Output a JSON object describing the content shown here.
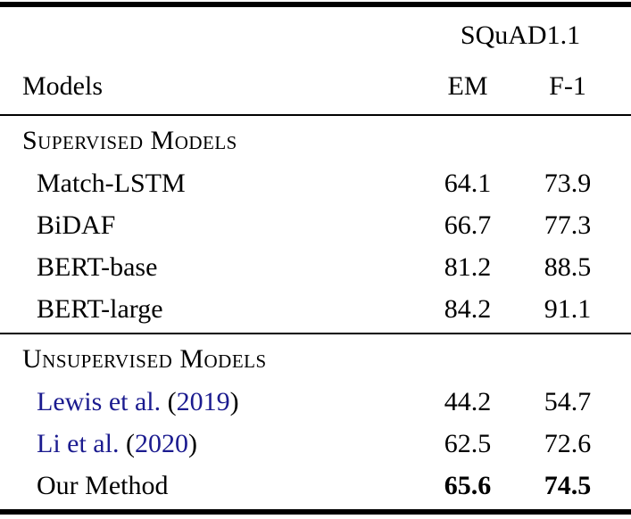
{
  "table": {
    "group_header": "SQuAD1.1",
    "columns": {
      "model": "Models",
      "em": "EM",
      "f1": "F-1"
    },
    "sections": [
      {
        "title": "Supervised Models",
        "rows": [
          {
            "model": "Match-LSTM",
            "em": "64.1",
            "f1": "73.9"
          },
          {
            "model": "BiDAF",
            "em": "66.7",
            "f1": "77.3"
          },
          {
            "model": "BERT-base",
            "em": "81.2",
            "f1": "88.5"
          },
          {
            "model": "BERT-large",
            "em": "84.2",
            "f1": "91.1"
          }
        ]
      },
      {
        "title": "Unsupervised Models",
        "rows": [
          {
            "model": "Lewis et al.",
            "year": "2019",
            "em": "44.2",
            "f1": "54.7"
          },
          {
            "model": "Li et al.",
            "year": "2020",
            "em": "62.5",
            "f1": "72.6"
          },
          {
            "model": "Our Method",
            "em": "65.6",
            "f1": "74.5"
          }
        ]
      }
    ],
    "punctuation": {
      "open": " (",
      "close": ")"
    }
  },
  "colors": {
    "text": "#000000",
    "citation": "#1b1b8f",
    "rule": "#000000",
    "bg": "#ffffff"
  }
}
